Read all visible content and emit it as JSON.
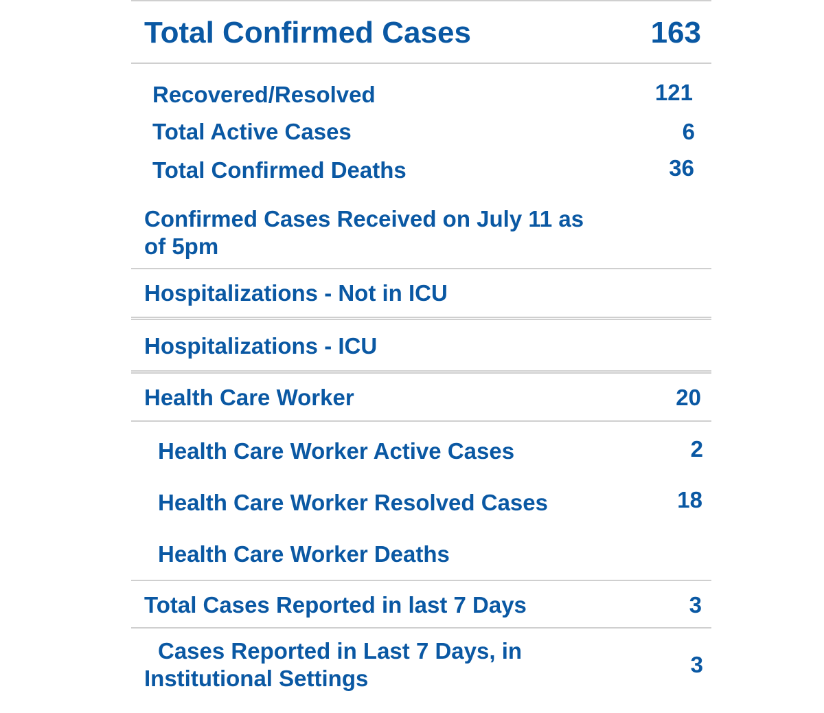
{
  "total_confirmed": {
    "label": "Total Confirmed Cases",
    "value": "163"
  },
  "summary_rows": [
    {
      "label": "Recovered/Resolved",
      "value": "121"
    },
    {
      "label": "Total Active Cases",
      "value": "6"
    },
    {
      "label": "Total Confirmed Deaths",
      "value": "36"
    }
  ],
  "received": {
    "label": "Confirmed Cases Received on July 11 as of 5pm",
    "value": ""
  },
  "hosp_not_icu": {
    "label": "Hospitalizations - Not in ICU",
    "value": ""
  },
  "hosp_icu": {
    "label": "Hospitalizations - ICU",
    "value": ""
  },
  "hcw": {
    "label": "Health Care Worker",
    "value": "20"
  },
  "hcw_rows": [
    {
      "label": "Health Care Worker Active Cases",
      "value": "2"
    },
    {
      "label": "Health Care Worker Resolved Cases",
      "value": "18"
    },
    {
      "label": "Health Care Worker Deaths",
      "value": ""
    }
  ],
  "last7": {
    "label": "Total Cases Reported in last 7 Days",
    "value": "3"
  },
  "last7_inst": {
    "label": "Cases Reported in Last 7 Days, in Institutional Settings",
    "value": "3"
  },
  "colors": {
    "text": "#0a58a3",
    "rule": "#cfcfcf"
  }
}
